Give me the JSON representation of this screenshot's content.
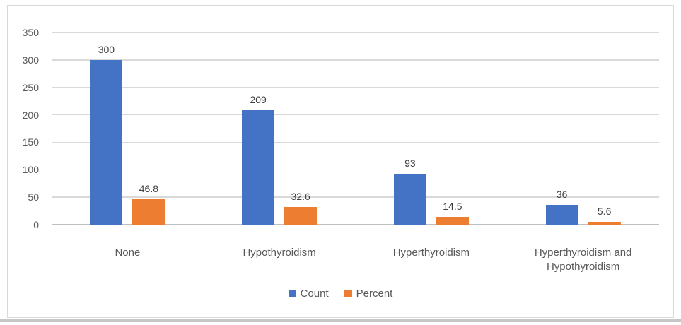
{
  "page": {
    "background": "#ffffff",
    "bottom_edge_color": "#c6c6c6"
  },
  "chart_data": {
    "type": "bar",
    "title": "",
    "categories": [
      "None",
      "Hypothyroidism",
      "Hyperthyroidism",
      "Hyperthyroidism and Hypothyroidism"
    ],
    "series": [
      {
        "name": "Count",
        "color": "#4472C4",
        "values": [
          300,
          209,
          93,
          36
        ],
        "labels": [
          "300",
          "209",
          "93",
          "36"
        ]
      },
      {
        "name": "Percent",
        "color": "#ED7D31",
        "values": [
          46.8,
          32.6,
          14.5,
          5.6
        ],
        "labels": [
          "46.8",
          "32.6",
          "14.5",
          "5.6"
        ]
      }
    ],
    "y_axis": {
      "min": 0,
      "max": 350,
      "step": 50,
      "ticks": [
        0,
        50,
        100,
        150,
        200,
        250,
        300,
        350
      ]
    },
    "xlabel": "",
    "ylabel": "",
    "grid": true,
    "data_labels": true,
    "legend": {
      "position": "bottom",
      "entries": [
        "Count",
        "Percent"
      ]
    },
    "styles": {
      "gridline_color": "#d9d9d9",
      "axis_line_color": "#bfbfbf",
      "tick_text_color": "#595959",
      "category_text_color": "#595959",
      "legend_text_color": "#595959",
      "data_label_color": "#404040",
      "frame_border_color": "#d9d9d9",
      "plot_background": "#ffffff"
    }
  }
}
